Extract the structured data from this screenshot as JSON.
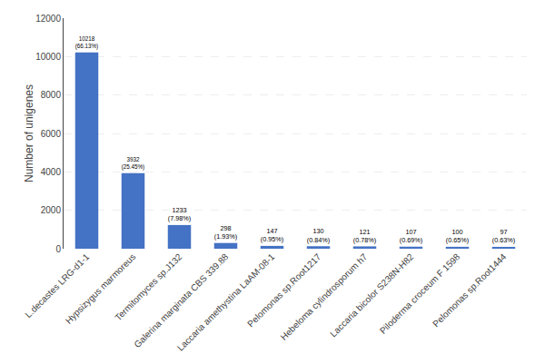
{
  "chart_data": {
    "type": "bar",
    "ylabel": "Number of unigenes",
    "categories": [
      "L.decastes LRG-d1-1",
      "Hypsizygus marmoreus",
      "Termitomyces sp.J132",
      "Galerina marginata CBS 339.88",
      "Laccaria amethystina LaAM-08-1",
      "Pelomonas sp.Root1217",
      "Hebeloma cylindrosporum h7",
      "Laccaria bicolor S238N-H82",
      "Piloderma croceum F 1598",
      "Pelomonas sp.Root1444"
    ],
    "values": [
      10218,
      3932,
      1233,
      298,
      147,
      130,
      121,
      107,
      100,
      97
    ],
    "percentages": [
      66.13,
      25.45,
      7.98,
      1.93,
      0.95,
      0.84,
      0.78,
      0.69,
      0.65,
      0.63
    ],
    "percentage_labels": [
      "(66.13%)",
      "(25.45%)",
      "(7.98%)",
      "(1.93%)",
      "(0.95%)",
      "(0.84%)",
      "(0.78%)",
      "(0.69%)",
      "(0.65%)",
      "(0.63%)"
    ],
    "color": "#4472c4",
    "ylim": [
      0,
      12000
    ],
    "yticks": [
      0,
      2000,
      4000,
      6000,
      8000,
      10000,
      12000
    ],
    "grid": true,
    "data_labels": true
  }
}
